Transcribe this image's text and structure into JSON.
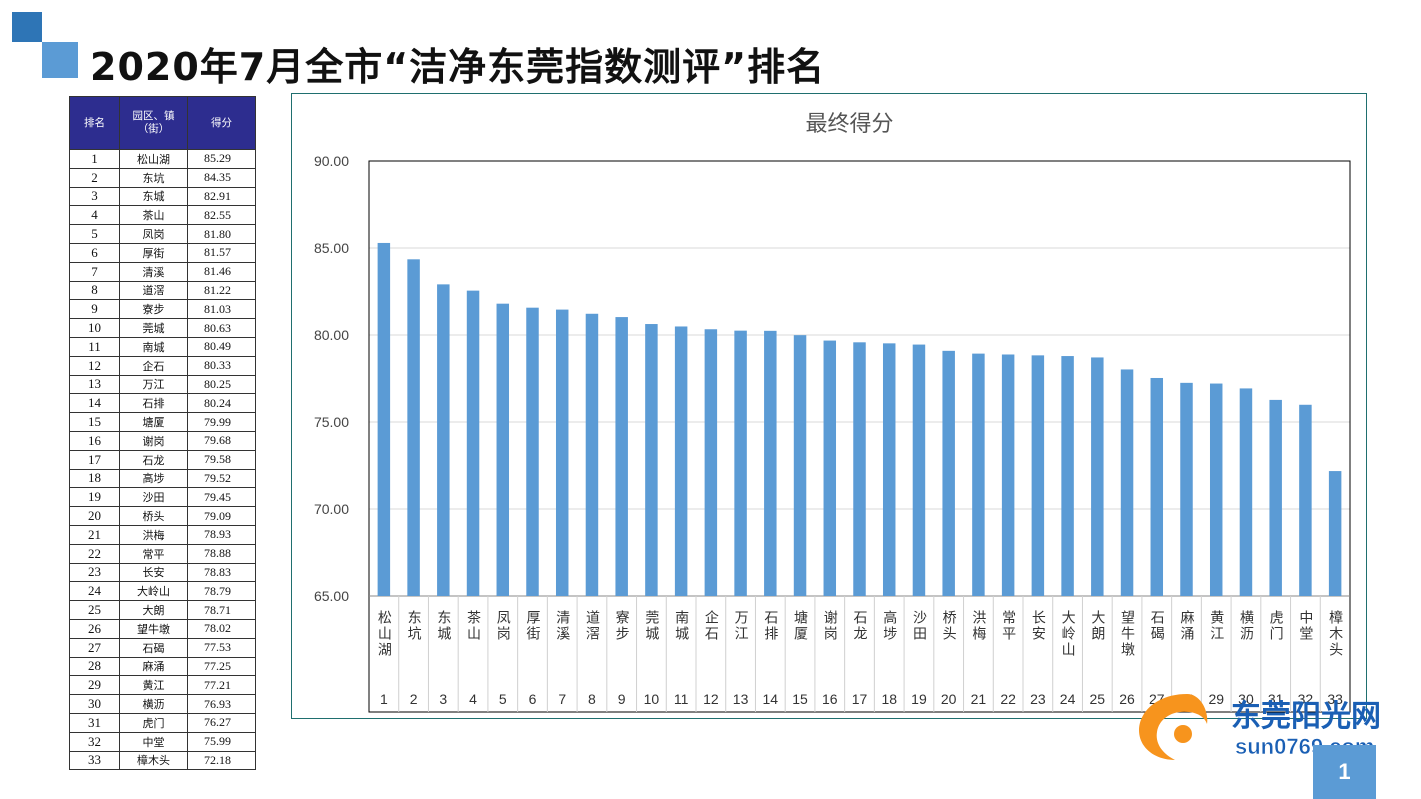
{
  "title": "2020年7月全市“洁净东莞指数测评”排名",
  "table": {
    "headers": {
      "rank": "排名",
      "town": "园区、镇（街）",
      "score": "得分"
    },
    "rows": [
      {
        "rank": "1",
        "town": "松山湖",
        "score": "85.29"
      },
      {
        "rank": "2",
        "town": "东坑",
        "score": "84.35"
      },
      {
        "rank": "3",
        "town": "东城",
        "score": "82.91"
      },
      {
        "rank": "4",
        "town": "茶山",
        "score": "82.55"
      },
      {
        "rank": "5",
        "town": "凤岗",
        "score": "81.80"
      },
      {
        "rank": "6",
        "town": "厚街",
        "score": "81.57"
      },
      {
        "rank": "7",
        "town": "清溪",
        "score": "81.46"
      },
      {
        "rank": "8",
        "town": "道滘",
        "score": "81.22"
      },
      {
        "rank": "9",
        "town": "寮步",
        "score": "81.03"
      },
      {
        "rank": "10",
        "town": "莞城",
        "score": "80.63"
      },
      {
        "rank": "11",
        "town": "南城",
        "score": "80.49"
      },
      {
        "rank": "12",
        "town": "企石",
        "score": "80.33"
      },
      {
        "rank": "13",
        "town": "万江",
        "score": "80.25"
      },
      {
        "rank": "14",
        "town": "石排",
        "score": "80.24"
      },
      {
        "rank": "15",
        "town": "塘厦",
        "score": "79.99"
      },
      {
        "rank": "16",
        "town": "谢岗",
        "score": "79.68"
      },
      {
        "rank": "17",
        "town": "石龙",
        "score": "79.58"
      },
      {
        "rank": "18",
        "town": "高埗",
        "score": "79.52"
      },
      {
        "rank": "19",
        "town": "沙田",
        "score": "79.45"
      },
      {
        "rank": "20",
        "town": "桥头",
        "score": "79.09"
      },
      {
        "rank": "21",
        "town": "洪梅",
        "score": "78.93"
      },
      {
        "rank": "22",
        "town": "常平",
        "score": "78.88"
      },
      {
        "rank": "23",
        "town": "长安",
        "score": "78.83"
      },
      {
        "rank": "24",
        "town": "大岭山",
        "score": "78.79"
      },
      {
        "rank": "25",
        "town": "大朗",
        "score": "78.71"
      },
      {
        "rank": "26",
        "town": "望牛墩",
        "score": "78.02"
      },
      {
        "rank": "27",
        "town": "石碣",
        "score": "77.53"
      },
      {
        "rank": "28",
        "town": "麻涌",
        "score": "77.25"
      },
      {
        "rank": "29",
        "town": "黄江",
        "score": "77.21"
      },
      {
        "rank": "30",
        "town": "横沥",
        "score": "76.93"
      },
      {
        "rank": "31",
        "town": "虎门",
        "score": "76.27"
      },
      {
        "rank": "32",
        "town": "中堂",
        "score": "75.99"
      },
      {
        "rank": "33",
        "town": "樟木头",
        "score": "72.18"
      }
    ]
  },
  "chart_data": {
    "type": "bar",
    "title": "最终得分",
    "categories": [
      "松山湖",
      "东坑",
      "东城",
      "茶山",
      "凤岗",
      "厚街",
      "清溪",
      "道滘",
      "寮步",
      "莞城",
      "南城",
      "企石",
      "万江",
      "石排",
      "塘厦",
      "谢岗",
      "石龙",
      "高埗",
      "沙田",
      "桥头",
      "洪梅",
      "常平",
      "长安",
      "大岭山",
      "大朗",
      "望牛墩",
      "石碣",
      "麻涌",
      "黄江",
      "横沥",
      "虎门",
      "中堂",
      "樟木头"
    ],
    "ranks": [
      "1",
      "2",
      "3",
      "4",
      "5",
      "6",
      "7",
      "8",
      "9",
      "10",
      "11",
      "12",
      "13",
      "14",
      "15",
      "16",
      "17",
      "18",
      "19",
      "20",
      "21",
      "22",
      "23",
      "24",
      "25",
      "26",
      "27",
      "28",
      "29",
      "30",
      "31",
      "32",
      "33"
    ],
    "values": [
      85.29,
      84.35,
      82.91,
      82.55,
      81.8,
      81.57,
      81.46,
      81.22,
      81.03,
      80.63,
      80.49,
      80.33,
      80.25,
      80.24,
      79.99,
      79.68,
      79.58,
      79.52,
      79.45,
      79.09,
      78.93,
      78.88,
      78.83,
      78.79,
      78.71,
      78.02,
      77.53,
      77.25,
      77.21,
      76.93,
      76.27,
      75.99,
      72.18
    ],
    "ylim": [
      65,
      90
    ],
    "yticks": [
      "65.00",
      "70.00",
      "75.00",
      "80.00",
      "85.00",
      "90.00"
    ],
    "grid": true,
    "bar_color": "#5b9bd5"
  },
  "logo": {
    "name": "东莞阳光网",
    "url_text": "sun0769.com",
    "brand_color": "#f7941d",
    "text_color": "#1a5fb4"
  },
  "page_number": "1"
}
